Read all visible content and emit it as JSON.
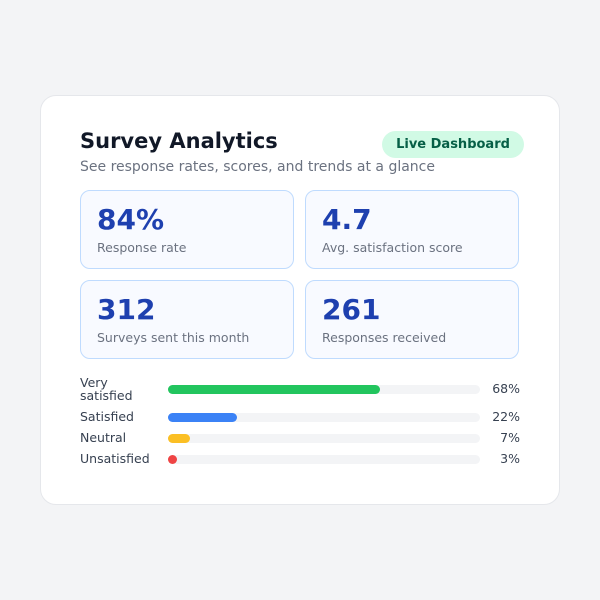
{
  "header": {
    "title": "Survey Analytics",
    "subtitle": "See response rates, scores, and trends at a glance",
    "badge": "Live Dashboard"
  },
  "stats": [
    {
      "value": "84%",
      "label": "Response rate"
    },
    {
      "value": "4.7",
      "label": "Avg. satisfaction score"
    },
    {
      "value": "312",
      "label": "Surveys sent this month"
    },
    {
      "value": "261",
      "label": "Responses received"
    }
  ],
  "chart_data": {
    "type": "bar",
    "orientation": "horizontal",
    "categories": [
      "Very satisfied",
      "Satisfied",
      "Neutral",
      "Unsatisfied"
    ],
    "values": [
      68,
      22,
      7,
      3
    ],
    "value_labels": [
      "68%",
      "22%",
      "7%",
      "3%"
    ],
    "colors": [
      "#22c55e",
      "#3b82f6",
      "#fbbf24",
      "#ef4444"
    ],
    "xlim": [
      0,
      100
    ]
  }
}
